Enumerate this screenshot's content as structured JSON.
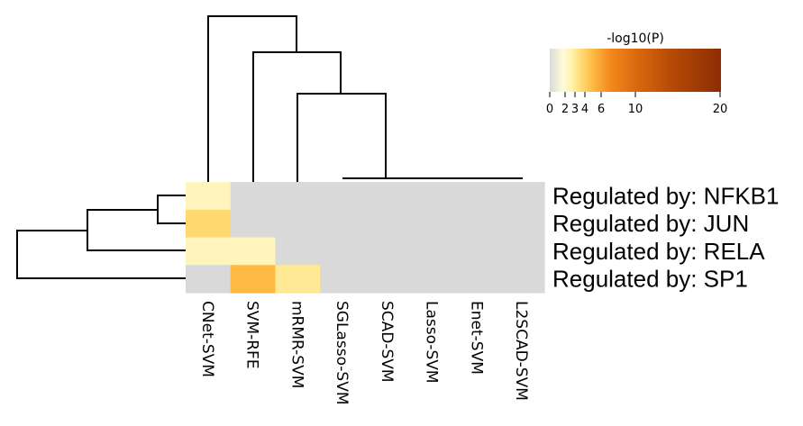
{
  "chart_data": {
    "type": "heatmap",
    "rows": [
      "Regulated by: NFKB1",
      "Regulated by: JUN",
      "Regulated by: RELA",
      "Regulated by: SP1"
    ],
    "columns": [
      "CNet-SVM",
      "SVM-RFE",
      "mRMR-SVM",
      "SGLasso-SVM",
      "SCAD-SVM",
      "Lasso-SVM",
      "Enet-SVM",
      "L2SCAD-SVM"
    ],
    "values": [
      [
        2.2,
        0,
        0,
        0,
        0,
        0,
        0,
        0
      ],
      [
        3.8,
        0,
        0,
        0,
        0,
        0,
        0,
        0
      ],
      [
        2.2,
        2.2,
        0,
        0,
        0,
        0,
        0,
        0
      ],
      [
        0,
        5.0,
        3.0,
        0,
        0,
        0,
        0,
        0
      ]
    ],
    "colorbar": {
      "title": "-log10(P)",
      "ticks": [
        0,
        2,
        3,
        4,
        6,
        10,
        20
      ],
      "range": [
        0,
        20
      ]
    },
    "colors": {
      "zero": "#d9d9d9",
      "scale": [
        "#d9d9d9",
        "#fffdd0",
        "#fff7bc",
        "#fec44f",
        "#fe9929",
        "#e06a10",
        "#cc4c02",
        "#8c2d04"
      ]
    },
    "row_dendrogram": true,
    "col_dendrogram": true,
    "grid": false
  }
}
